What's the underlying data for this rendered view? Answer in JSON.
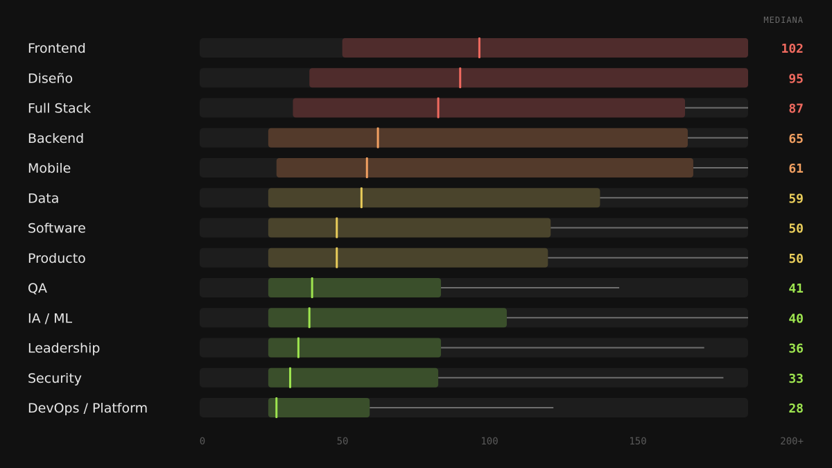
{
  "chart_data": {
    "type": "box",
    "median_header": "MEDIANA",
    "x_ticks": [
      "0",
      "50",
      "100",
      "150",
      "200+"
    ],
    "xlim": [
      0,
      200
    ],
    "rows": [
      {
        "label": "Frontend",
        "median_label": "102",
        "whisker": [
          0,
          200
        ],
        "box": [
          52,
          200
        ],
        "median": 102,
        "color": "#f06a5f",
        "box_color": "#4f2c2c"
      },
      {
        "label": "Diseño",
        "median_label": "95",
        "whisker": [
          0,
          200
        ],
        "box": [
          40,
          200
        ],
        "median": 95,
        "color": "#f06a5f",
        "box_color": "#4f2c2c"
      },
      {
        "label": "Full Stack",
        "median_label": "87",
        "whisker": [
          0,
          200
        ],
        "box": [
          34,
          177
        ],
        "median": 87,
        "color": "#f06a5f",
        "box_color": "#4f2c2c"
      },
      {
        "label": "Backend",
        "median_label": "65",
        "whisker": [
          0,
          200
        ],
        "box": [
          25,
          178
        ],
        "median": 65,
        "color": "#f2a061",
        "box_color": "#533a2b"
      },
      {
        "label": "Mobile",
        "median_label": "61",
        "whisker": [
          0,
          200
        ],
        "box": [
          28,
          180
        ],
        "median": 61,
        "color": "#f2a061",
        "box_color": "#533a2b"
      },
      {
        "label": "Data",
        "median_label": "59",
        "whisker": [
          0,
          200
        ],
        "box": [
          25,
          146
        ],
        "median": 59,
        "color": "#e8cc5a",
        "box_color": "#4a442c"
      },
      {
        "label": "Software",
        "median_label": "50",
        "whisker": [
          0,
          200
        ],
        "box": [
          25,
          128
        ],
        "median": 50,
        "color": "#e8cc5a",
        "box_color": "#4a442c"
      },
      {
        "label": "Producto",
        "median_label": "50",
        "whisker": [
          0,
          200
        ],
        "box": [
          25,
          127
        ],
        "median": 50,
        "color": "#e8cc5a",
        "box_color": "#4a442c"
      },
      {
        "label": "QA",
        "median_label": "41",
        "whisker": [
          0,
          153
        ],
        "box": [
          25,
          88
        ],
        "median": 41,
        "color": "#9ee54f",
        "box_color": "#3a4f2b"
      },
      {
        "label": "IA / ML",
        "median_label": "40",
        "whisker": [
          0,
          200
        ],
        "box": [
          25,
          112
        ],
        "median": 40,
        "color": "#9ee54f",
        "box_color": "#3a4f2b"
      },
      {
        "label": "Leadership",
        "median_label": "36",
        "whisker": [
          0,
          184
        ],
        "box": [
          25,
          88
        ],
        "median": 36,
        "color": "#9ee54f",
        "box_color": "#3a4f2b"
      },
      {
        "label": "Security",
        "median_label": "33",
        "whisker": [
          0,
          191
        ],
        "box": [
          25,
          87
        ],
        "median": 33,
        "color": "#9ee54f",
        "box_color": "#3a4f2b"
      },
      {
        "label": "DevOps / Platform",
        "median_label": "28",
        "whisker": [
          0,
          129
        ],
        "box": [
          25,
          62
        ],
        "median": 28,
        "color": "#9ee54f",
        "box_color": "#3a4f2b"
      }
    ]
  }
}
